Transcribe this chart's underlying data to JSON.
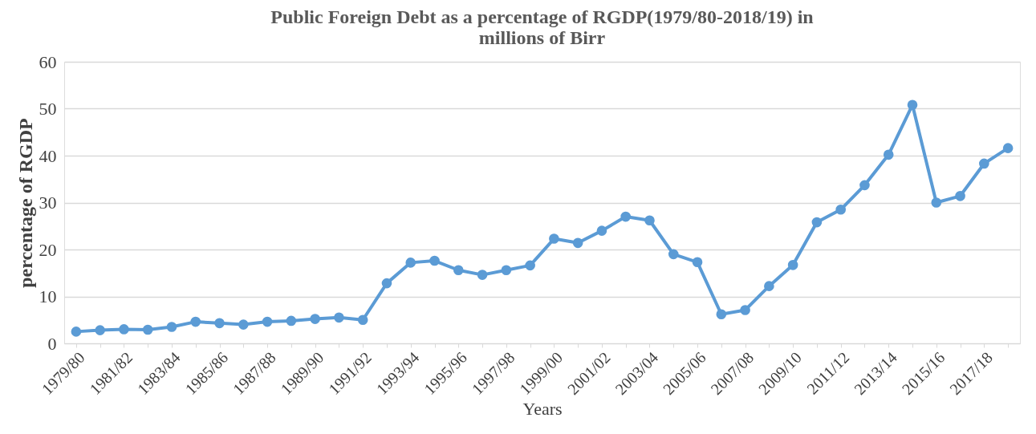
{
  "chart_data": {
    "type": "line",
    "title": [
      "Public Foreign Debt as  a percentage of RGDP(1979/80-2018/19) in",
      "millions of Birr"
    ],
    "xlabel": "Years",
    "ylabel": "percentage of RGDP",
    "categories": [
      "1979/80",
      null,
      "1981/82",
      null,
      "1983/84",
      null,
      "1985/86",
      null,
      "1987/88",
      null,
      "1989/90",
      null,
      "1991/92",
      null,
      "1993/94",
      null,
      "1995/96",
      null,
      "1997/98",
      null,
      "1999/00",
      null,
      "2001/02",
      null,
      "2003/04",
      null,
      "2005/06",
      null,
      "2007/08",
      null,
      "2009/10",
      null,
      "2011/12",
      null,
      "2013/14",
      null,
      "2015/16",
      null,
      "2017/18",
      null
    ],
    "series": [
      {
        "color": "#5b9bd5",
        "values": [
          2.5,
          2.8,
          3,
          2.9,
          3.5,
          4.6,
          4.3,
          4,
          4.6,
          4.8,
          5.2,
          5.5,
          5,
          12.8,
          17.2,
          17.6,
          15.6,
          14.6,
          15.6,
          16.6,
          22.3,
          21.4,
          24,
          27,
          26.2,
          19,
          17.3,
          6.2,
          7.1,
          12.2,
          16.7,
          25.8,
          28.5,
          33.7,
          40.2,
          50.8,
          30,
          31.4,
          38.3,
          41.6
        ]
      }
    ],
    "ylim": [
      0,
      60
    ],
    "yticks": [
      0,
      10,
      20,
      30,
      40,
      50,
      60
    ],
    "grid": "y",
    "marker": "circle",
    "line_style": "solid"
  }
}
